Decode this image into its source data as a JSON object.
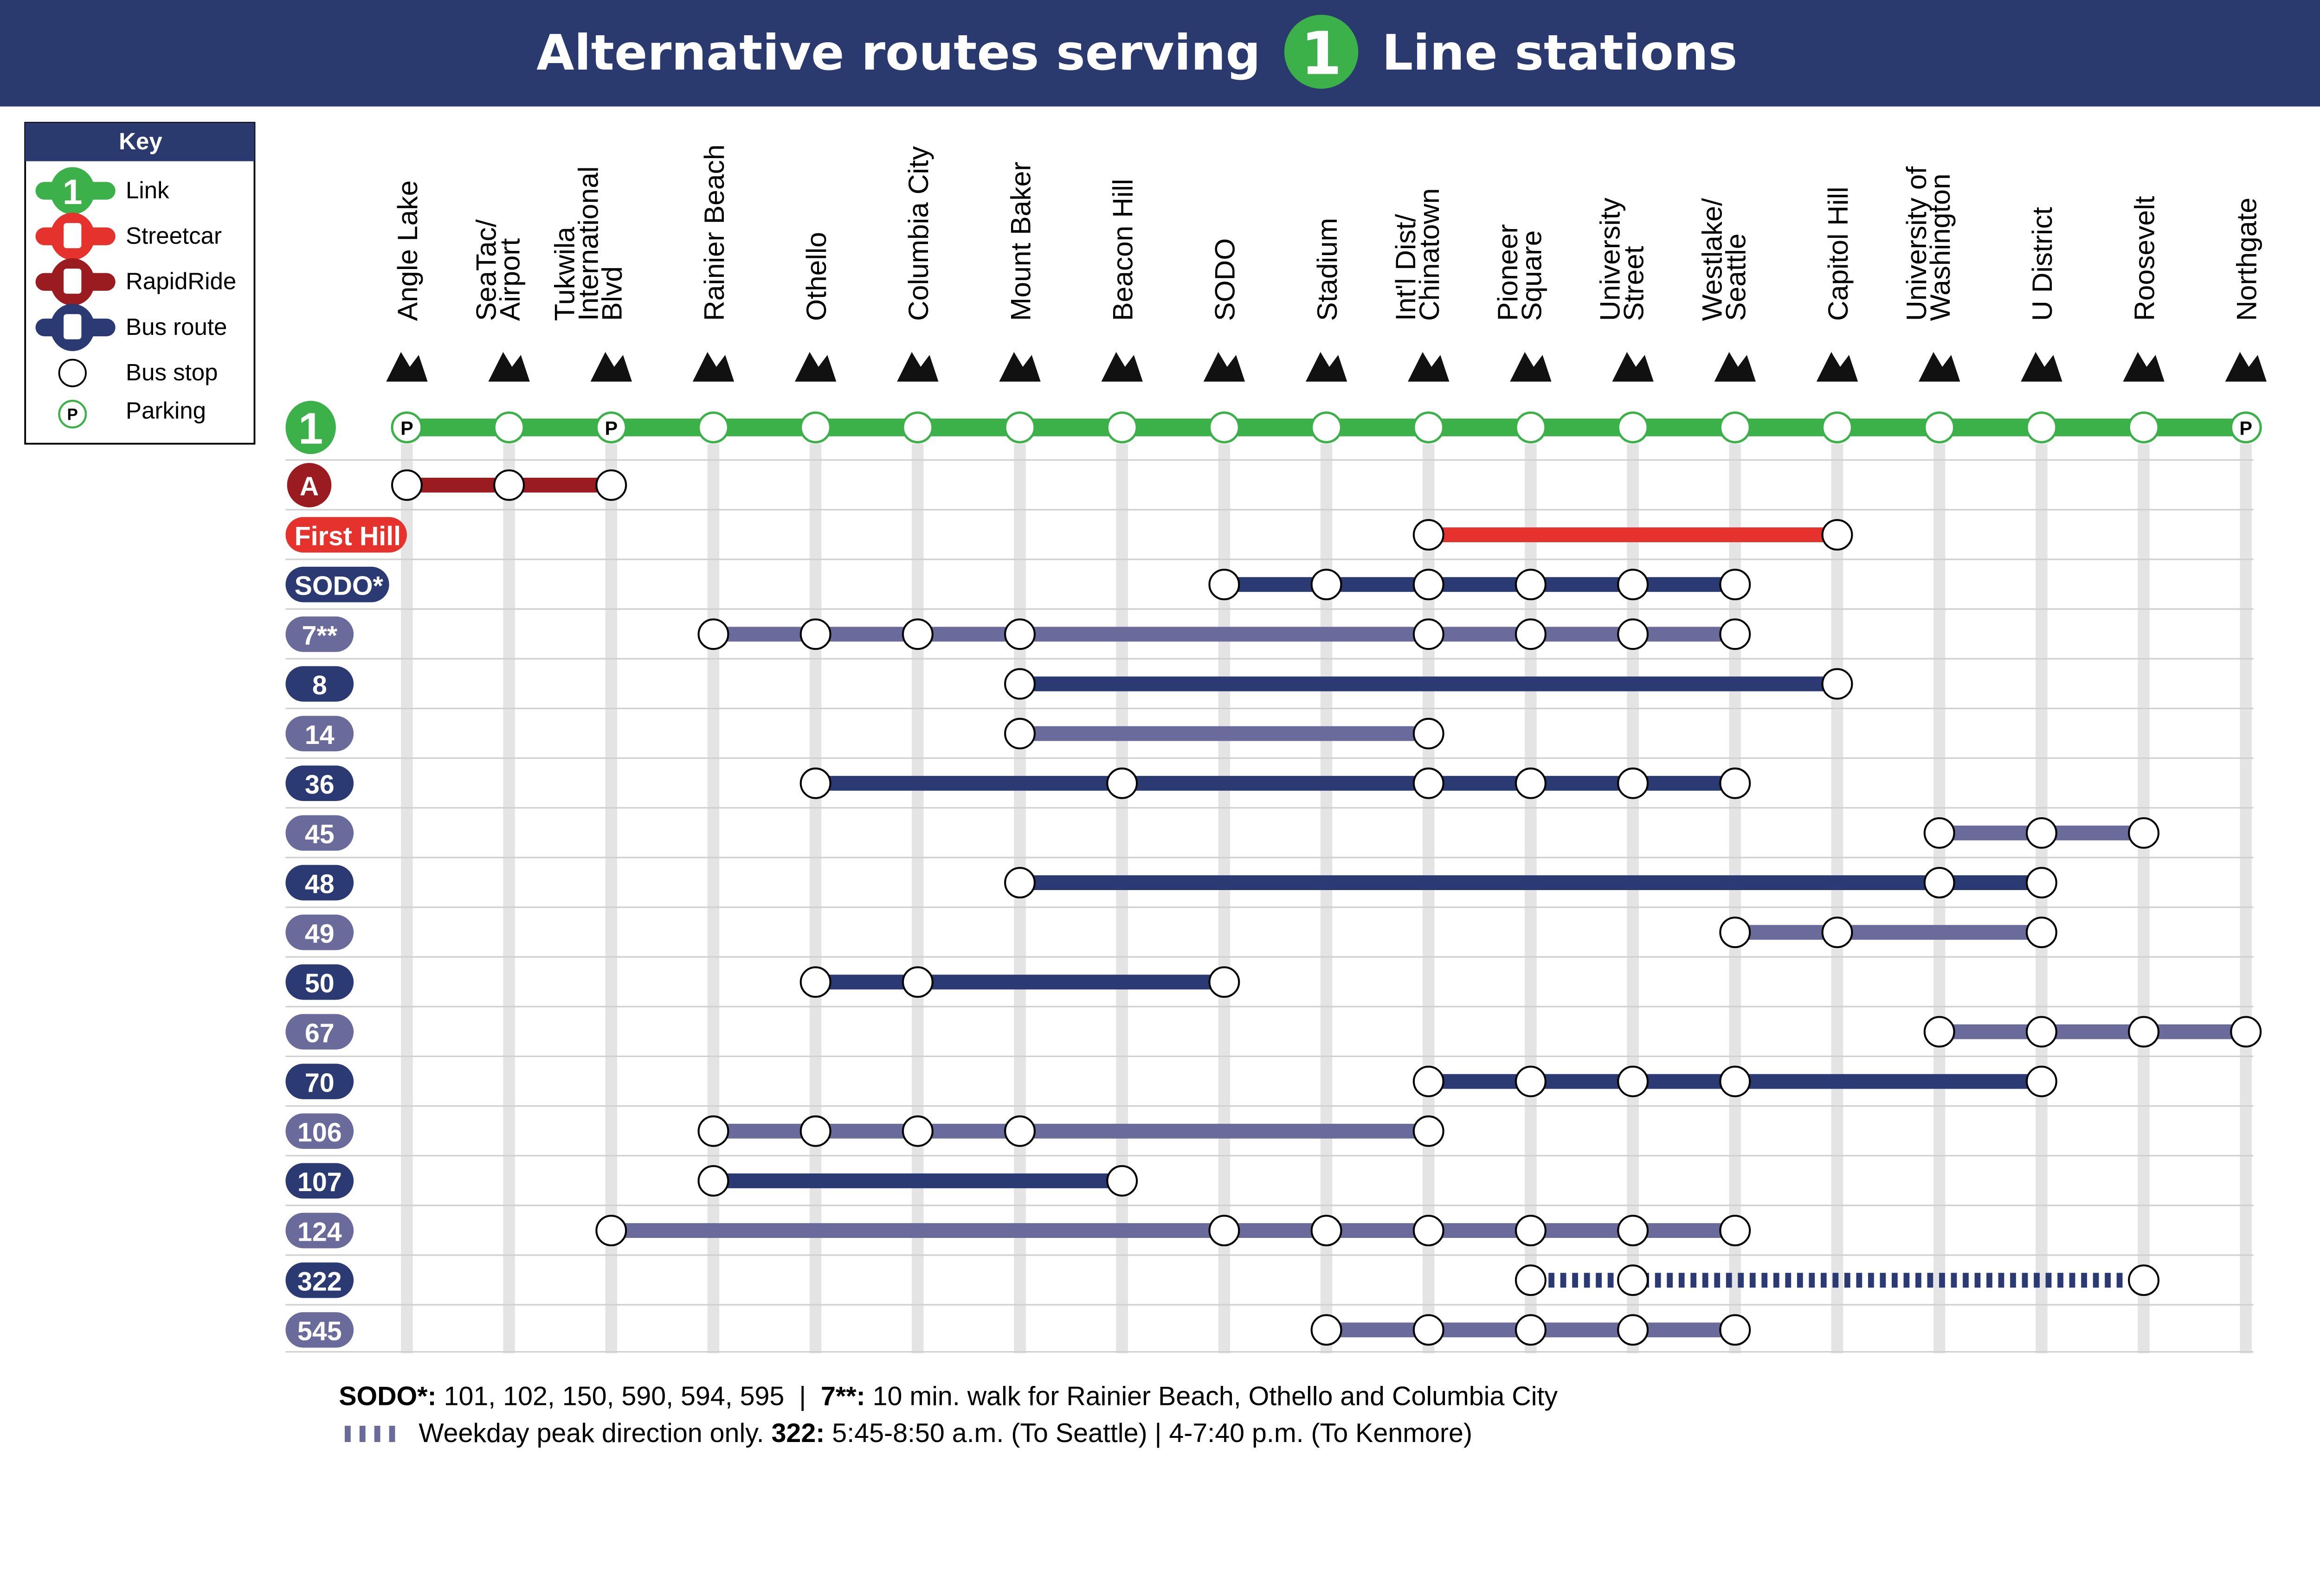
{
  "header": {
    "title_left": "Alternative routes serving",
    "line_number": "1",
    "title_right": "Line stations"
  },
  "colors": {
    "navy": "#2a3a6e",
    "link_green": "#3cb049",
    "streetcar": "#e5322c",
    "rapidride": "#9a1c20",
    "bus_dark": "#2b3a72",
    "bus_light": "#6b6b9b",
    "station_bar": "#e4e4e4"
  },
  "key": {
    "title": "Key",
    "items": [
      {
        "label": "Link",
        "icon": "link-1-icon"
      },
      {
        "label": "Streetcar",
        "icon": "streetcar-icon"
      },
      {
        "label": "RapidRide",
        "icon": "rapidride-bus-icon"
      },
      {
        "label": "Bus route",
        "icon": "bus-icon"
      },
      {
        "label": "Bus stop",
        "icon": "bus-stop-circle-icon"
      },
      {
        "label": "Parking",
        "icon": "parking-icon",
        "glyph": "P"
      }
    ]
  },
  "link_badge": "1",
  "parking_glyph": "P",
  "stations": [
    {
      "lines": [
        "Angle Lake"
      ],
      "icon": "fish-icon",
      "parking": true
    },
    {
      "lines": [
        "SeaTac/",
        "Airport"
      ],
      "icon": "airplane-icon"
    },
    {
      "lines": [
        "Tukwila",
        "International",
        "Blvd"
      ],
      "icon": "canoe-icon",
      "parking": true
    },
    {
      "lines": [
        "Rainier Beach"
      ],
      "icon": "heron-icon"
    },
    {
      "lines": [
        "Othello"
      ],
      "icon": "deer-icon"
    },
    {
      "lines": [
        "Columbia City"
      ],
      "icon": "eagle-icon"
    },
    {
      "lines": [
        "Mount Baker"
      ],
      "icon": "mountain-icon"
    },
    {
      "lines": [
        "Beacon Hill"
      ],
      "icon": "kite-icon"
    },
    {
      "lines": [
        "SODO"
      ],
      "icon": "anvil-icon"
    },
    {
      "lines": [
        "Stadium"
      ],
      "icon": "torch-icon"
    },
    {
      "lines": [
        "Int'l Dist/",
        "Chinatown"
      ],
      "icon": "dragon-icon"
    },
    {
      "lines": [
        "Pioneer",
        "Square"
      ],
      "icon": "ship-icon"
    },
    {
      "lines": [
        "University",
        "Street"
      ],
      "icon": "binoculars-icon"
    },
    {
      "lines": [
        "Westlake/",
        "Seattle"
      ],
      "icon": "crown-icon"
    },
    {
      "lines": [
        "Capitol Hill"
      ],
      "icon": "flag-icon"
    },
    {
      "lines": [
        "University of",
        "Washington"
      ],
      "icon": "graduation-cap-icon"
    },
    {
      "lines": [
        "U District"
      ],
      "icon": "books-icon"
    },
    {
      "lines": [
        "Roosevelt"
      ],
      "icon": "moose-icon"
    },
    {
      "lines": [
        "Northgate"
      ],
      "icon": "dragonfly-icon",
      "parking": true
    }
  ],
  "routes": [
    {
      "label": "A",
      "type": "rapidride",
      "stops": [
        0,
        1,
        2
      ]
    },
    {
      "label": "First Hill",
      "type": "streetcar",
      "stops": [
        10,
        14
      ]
    },
    {
      "label": "SODO*",
      "type": "bus_dark",
      "stops": [
        8,
        9,
        10,
        11,
        12,
        13
      ]
    },
    {
      "label": "7**",
      "type": "bus_light",
      "stops": [
        3,
        4,
        5,
        6,
        10,
        11,
        12,
        13
      ]
    },
    {
      "label": "8",
      "type": "bus_dark",
      "stops": [
        6,
        14
      ]
    },
    {
      "label": "14",
      "type": "bus_light",
      "stops": [
        6,
        10
      ]
    },
    {
      "label": "36",
      "type": "bus_dark",
      "stops": [
        4,
        7,
        10,
        11,
        12,
        13
      ]
    },
    {
      "label": "45",
      "type": "bus_light",
      "stops": [
        15,
        16,
        17
      ]
    },
    {
      "label": "48",
      "type": "bus_dark",
      "stops": [
        6,
        15,
        16
      ]
    },
    {
      "label": "49",
      "type": "bus_light",
      "stops": [
        13,
        14,
        16
      ]
    },
    {
      "label": "50",
      "type": "bus_dark",
      "stops": [
        4,
        5,
        8
      ]
    },
    {
      "label": "67",
      "type": "bus_light",
      "stops": [
        15,
        16,
        17,
        18
      ]
    },
    {
      "label": "70",
      "type": "bus_dark",
      "stops": [
        10,
        11,
        12,
        13,
        16
      ]
    },
    {
      "label": "106",
      "type": "bus_light",
      "stops": [
        3,
        4,
        5,
        6,
        10
      ]
    },
    {
      "label": "107",
      "type": "bus_dark",
      "stops": [
        3,
        7
      ]
    },
    {
      "label": "124",
      "type": "bus_light",
      "stops": [
        2,
        8,
        9,
        10,
        11,
        12,
        13
      ]
    },
    {
      "label": "322",
      "type": "bus_dark",
      "stops": [
        11,
        12,
        17
      ],
      "peak_only": true
    },
    {
      "label": "545",
      "type": "bus_light",
      "stops": [
        9,
        10,
        11,
        12,
        13
      ]
    }
  ],
  "footer": {
    "line1_bold1": "SODO*:",
    "line1_text1": " 101, 102, 150, 590, 594, 595  |  ",
    "line1_bold2": "7**:",
    "line1_text2": " 10 min. walk for Rainier Beach, Othello and Columbia City",
    "line2_text1": "Weekday peak direction only. ",
    "line2_bold": "322:",
    "line2_text2": " 5:45-8:50 a.m. (To Seattle) | 4-7:40 p.m. (To Kenmore)"
  }
}
